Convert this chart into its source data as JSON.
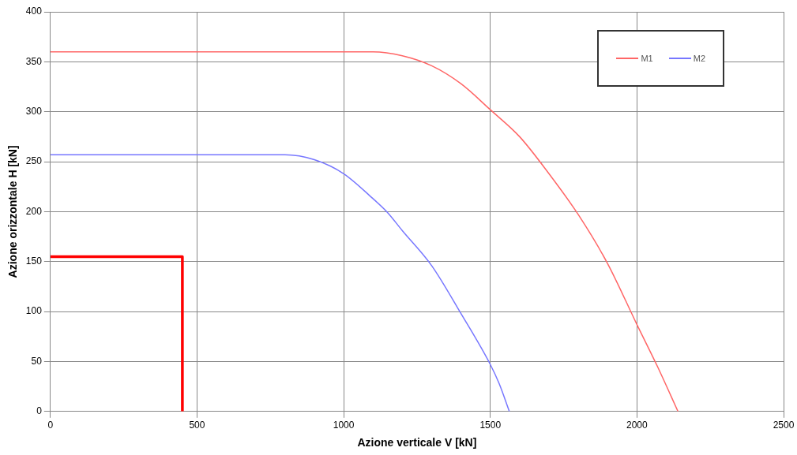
{
  "chart_data": {
    "type": "line",
    "xlabel": "Azione verticale V [kN]",
    "ylabel": "Azione orizzontale H [kN]",
    "xlim": [
      0,
      2500
    ],
    "xticks": [
      0,
      500,
      1000,
      1500,
      2000,
      2500
    ],
    "ylim": [
      0,
      400
    ],
    "yticks": [
      0,
      50,
      100,
      150,
      200,
      250,
      300,
      350,
      400
    ],
    "grid": true,
    "legend": "top right",
    "marker": "none",
    "line_style": "solid",
    "series": [
      {
        "name": "M1",
        "color": "#ff6666",
        "x": [
          0,
          500,
          1000,
          1100,
          1200,
          1300,
          1400,
          1500,
          1600,
          1700,
          1800,
          1900,
          2000,
          2070,
          2140
        ],
        "values": [
          360,
          360,
          360,
          360,
          356,
          346,
          328,
          302,
          275,
          238,
          197,
          148,
          87,
          45,
          0
        ]
      },
      {
        "name": "M2",
        "color": "#7777ff",
        "x": [
          0,
          500,
          800,
          900,
          1000,
          1100,
          1150,
          1200,
          1300,
          1400,
          1500,
          1530,
          1565
        ],
        "values": [
          257,
          257,
          257,
          252,
          238,
          213,
          199,
          181,
          146,
          98,
          47,
          28,
          0
        ]
      },
      {
        "color": "#ff0000",
        "x": [
          0,
          450,
          450
        ],
        "values": [
          155,
          155,
          0
        ]
      }
    ]
  }
}
